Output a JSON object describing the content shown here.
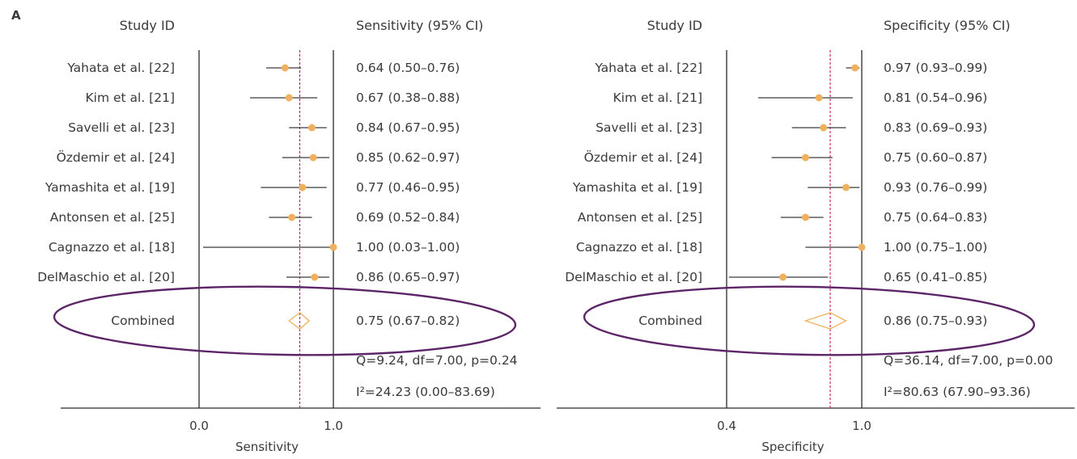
{
  "colors": {
    "axis": "#2b2b2b",
    "ci_line": "#3a3a3a",
    "point": "#f0b15e",
    "diamond": "#f0b15e",
    "pooled_line": "#c2185b",
    "ellipse": "#5c2568",
    "text": "#3a3a3a"
  },
  "chart_data": [
    {
      "type": "forest",
      "panel_label": "A",
      "column_headers": {
        "study": "Study ID",
        "estimate": "Sensitivity (95% CI)"
      },
      "xlabel": "Sensitivity",
      "xlim": [
        0.0,
        1.0
      ],
      "xticks": [
        "0.0",
        "1.0"
      ],
      "reference_line": 1.0,
      "pooled_line": 0.75,
      "studies": [
        {
          "label": "Yahata et al. [22]",
          "estimate": 0.64,
          "lower": 0.5,
          "upper": 0.76,
          "text": "0.64 (0.50–0.76)"
        },
        {
          "label": "Kim et al. [21]",
          "estimate": 0.67,
          "lower": 0.38,
          "upper": 0.88,
          "text": "0.67 (0.38–0.88)"
        },
        {
          "label": "Savelli et al. [23]",
          "estimate": 0.84,
          "lower": 0.67,
          "upper": 0.95,
          "text": "0.84 (0.67–0.95)"
        },
        {
          "label": "Özdemir et al. [24]",
          "estimate": 0.85,
          "lower": 0.62,
          "upper": 0.97,
          "text": "0.85 (0.62–0.97)"
        },
        {
          "label": "Yamashita et al. [19]",
          "estimate": 0.77,
          "lower": 0.46,
          "upper": 0.95,
          "text": "0.77 (0.46–0.95)"
        },
        {
          "label": "Antonsen et al. [25]",
          "estimate": 0.69,
          "lower": 0.52,
          "upper": 0.84,
          "text": "0.69 (0.52–0.84)"
        },
        {
          "label": "Cagnazzo et al. [18]",
          "estimate": 1.0,
          "lower": 0.03,
          "upper": 1.0,
          "text": "1.00 (0.03–1.00)"
        },
        {
          "label": "DelMaschio et al. [20]",
          "estimate": 0.86,
          "lower": 0.65,
          "upper": 0.97,
          "text": "0.86 (0.65–0.97)"
        }
      ],
      "combined": {
        "label": "Combined",
        "estimate": 0.75,
        "lower": 0.67,
        "upper": 0.82,
        "text": "0.75 (0.67–0.82)"
      },
      "heterogeneity": [
        "Q=9.24, df=7.00, p=0.24",
        "I²=24.23 (0.00–83.69)"
      ]
    },
    {
      "type": "forest",
      "panel_label": "",
      "column_headers": {
        "study": "Study ID",
        "estimate": "Specificity (95% CI)"
      },
      "xlabel": "Specificity",
      "xlim": [
        0.4,
        1.0
      ],
      "xticks": [
        "0.4",
        "1.0"
      ],
      "reference_line": 1.0,
      "pooled_line": 0.86,
      "studies": [
        {
          "label": "Yahata et al. [22]",
          "estimate": 0.97,
          "lower": 0.93,
          "upper": 0.99,
          "text": "0.97 (0.93–0.99)"
        },
        {
          "label": "Kim et al. [21]",
          "estimate": 0.81,
          "lower": 0.54,
          "upper": 0.96,
          "text": "0.81 (0.54–0.96)"
        },
        {
          "label": "Savelli et al. [23]",
          "estimate": 0.83,
          "lower": 0.69,
          "upper": 0.93,
          "text": "0.83 (0.69–0.93)"
        },
        {
          "label": "Özdemir et al. [24]",
          "estimate": 0.75,
          "lower": 0.6,
          "upper": 0.87,
          "text": "0.75 (0.60–0.87)"
        },
        {
          "label": "Yamashita et al. [19]",
          "estimate": 0.93,
          "lower": 0.76,
          "upper": 0.99,
          "text": "0.93 (0.76–0.99)"
        },
        {
          "label": "Antonsen et al. [25]",
          "estimate": 0.75,
          "lower": 0.64,
          "upper": 0.83,
          "text": "0.75 (0.64–0.83)"
        },
        {
          "label": "Cagnazzo et al. [18]",
          "estimate": 1.0,
          "lower": 0.75,
          "upper": 1.0,
          "text": "1.00 (0.75–1.00)"
        },
        {
          "label": "DelMaschio et al. [20]",
          "estimate": 0.65,
          "lower": 0.41,
          "upper": 0.85,
          "text": "0.65 (0.41–0.85)"
        }
      ],
      "combined": {
        "label": "Combined",
        "estimate": 0.86,
        "lower": 0.75,
        "upper": 0.93,
        "text": "0.86 (0.75–0.93)"
      },
      "heterogeneity": [
        "Q=36.14, df=7.00, p=0.00",
        "I²=80.63 (67.90–93.36)"
      ]
    }
  ]
}
